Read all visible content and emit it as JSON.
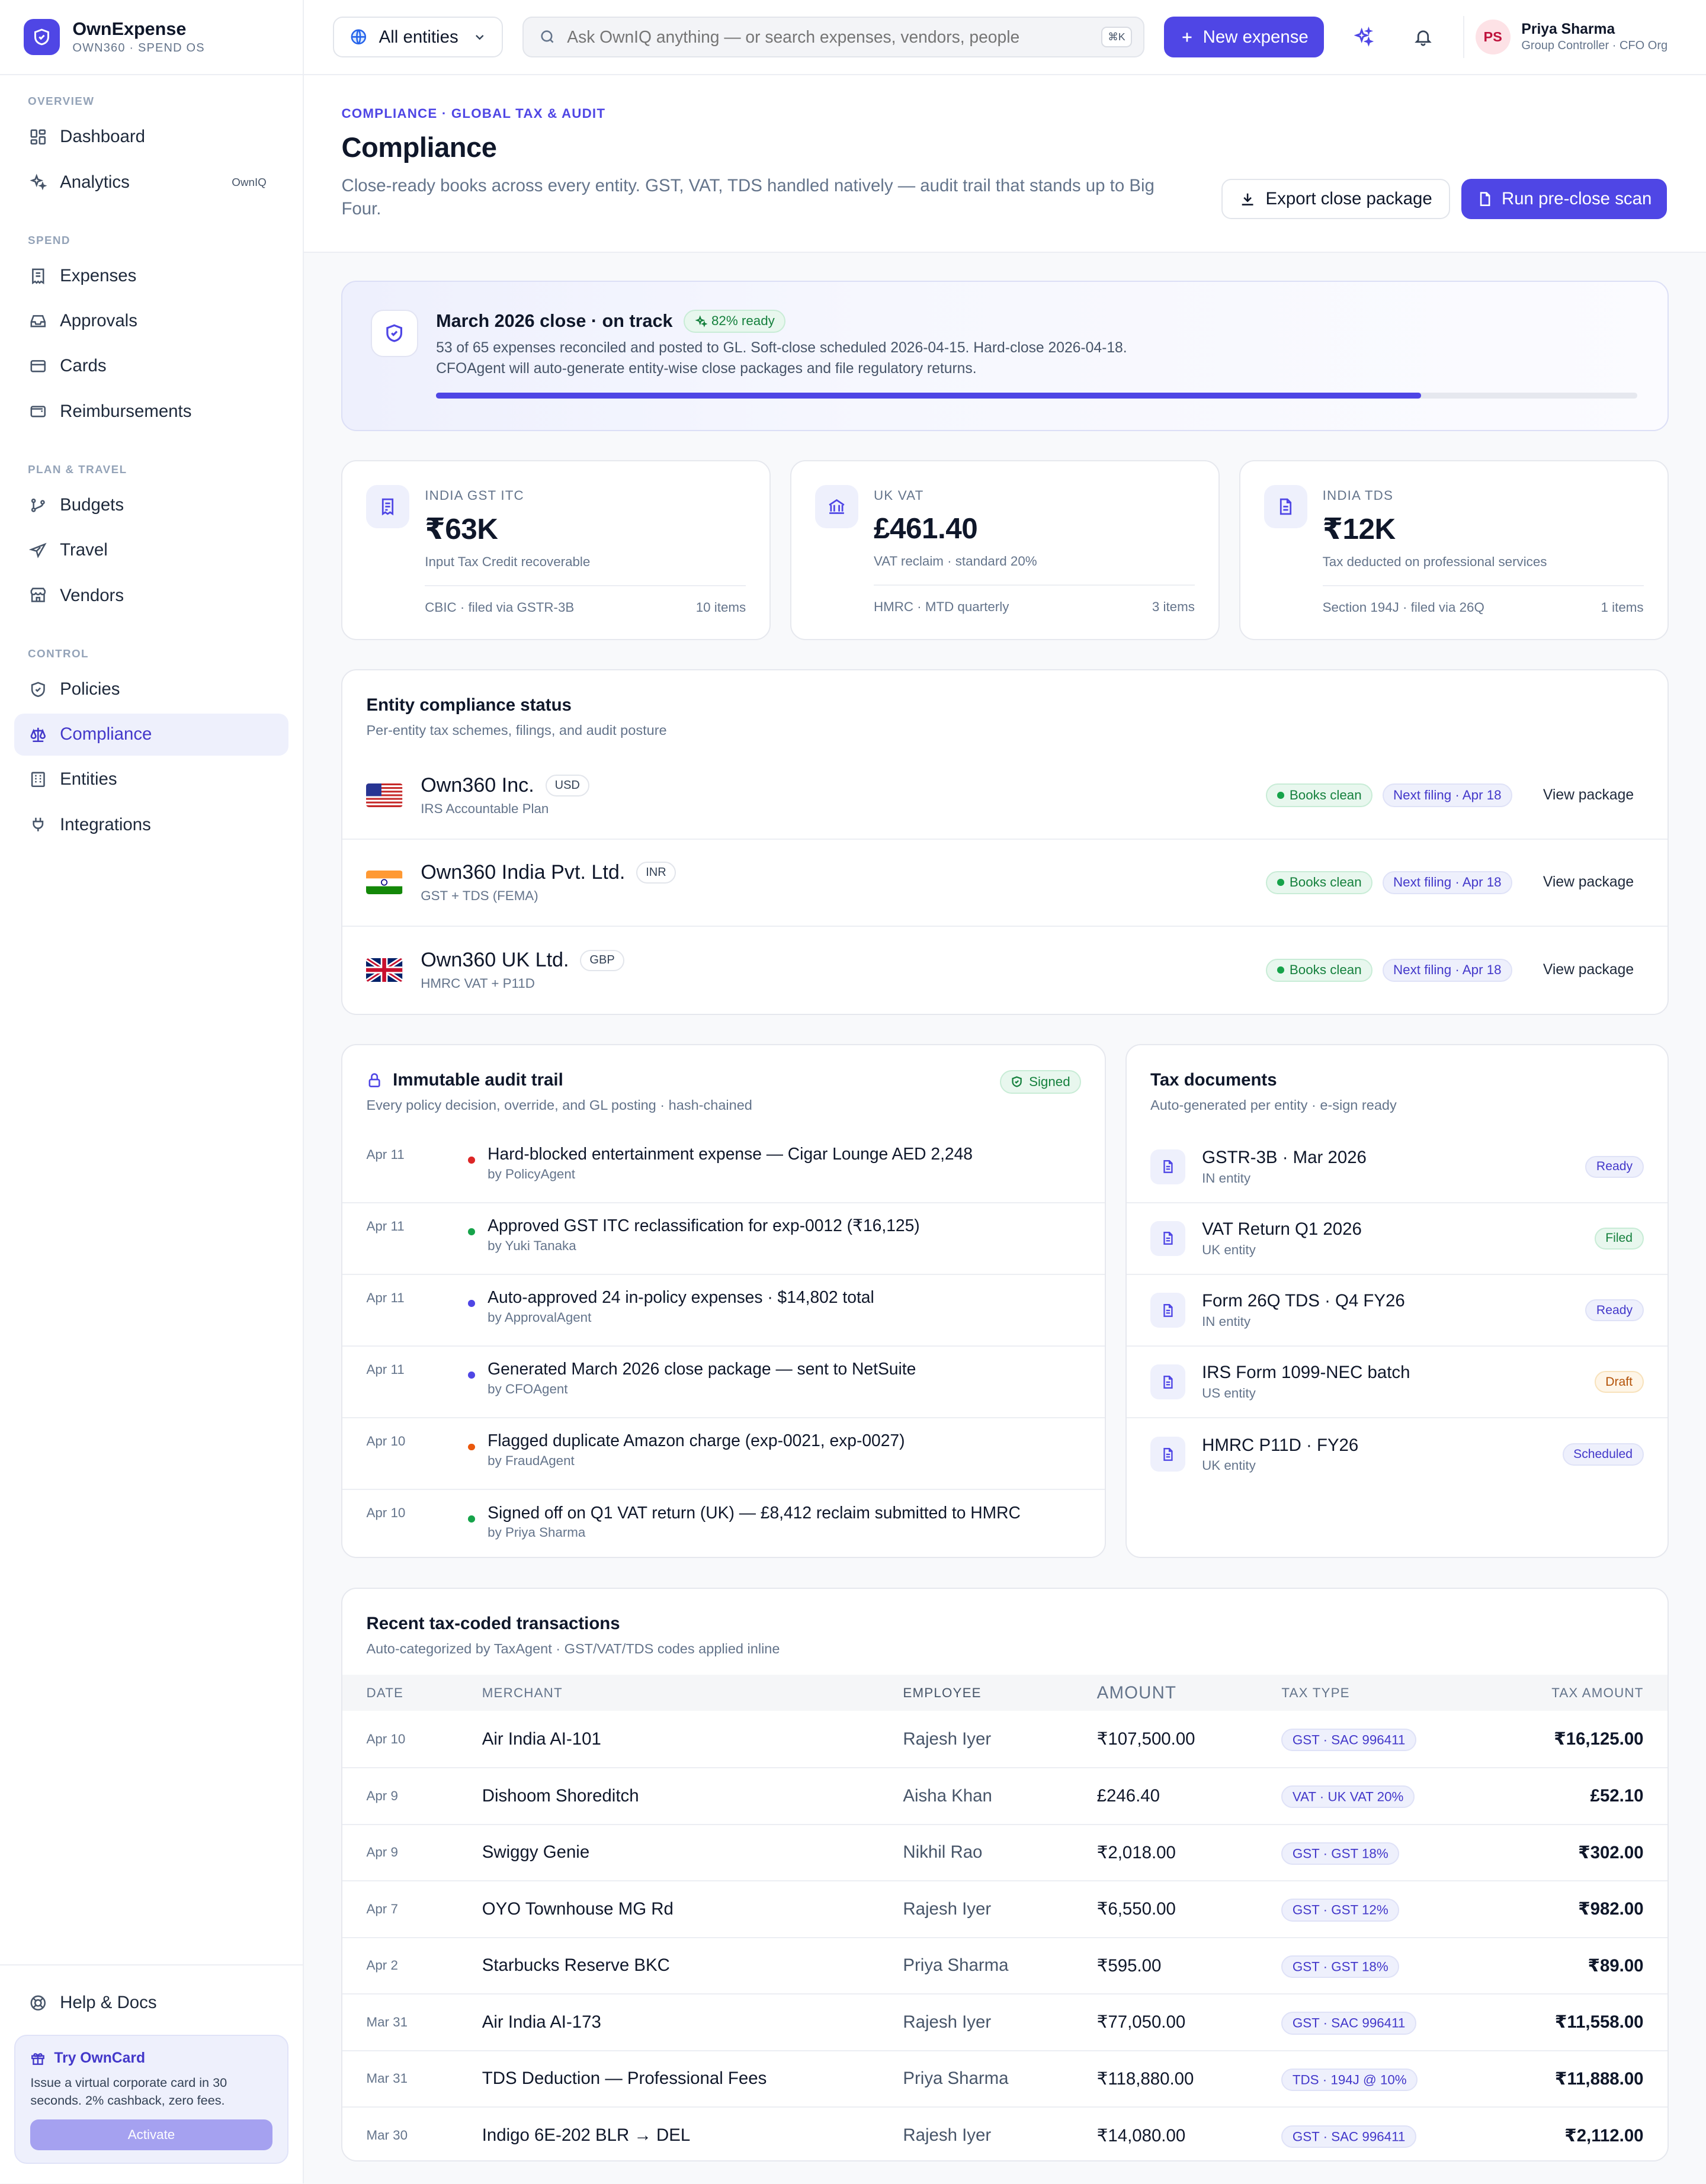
{
  "brand": {
    "name": "OwnExpense",
    "sub": "OWN360 · SPEND OS"
  },
  "nav": {
    "sections": [
      {
        "title": "OVERVIEW",
        "items": [
          {
            "label": "Dashboard"
          },
          {
            "label": "Analytics",
            "badge": "OwnIQ"
          }
        ]
      },
      {
        "title": "SPEND",
        "items": [
          {
            "label": "Expenses"
          },
          {
            "label": "Approvals"
          },
          {
            "label": "Cards"
          },
          {
            "label": "Reimbursements"
          }
        ]
      },
      {
        "title": "PLAN & TRAVEL",
        "items": [
          {
            "label": "Budgets"
          },
          {
            "label": "Travel"
          },
          {
            "label": "Vendors"
          }
        ]
      },
      {
        "title": "CONTROL",
        "items": [
          {
            "label": "Policies"
          },
          {
            "label": "Compliance",
            "active": true
          },
          {
            "label": "Entities"
          },
          {
            "label": "Integrations"
          }
        ]
      }
    ],
    "help": "Help & Docs"
  },
  "promo": {
    "title": "Try OwnCard",
    "text": "Issue a virtual corporate card in 30 seconds. 2% cashback, zero fees.",
    "button": "Activate"
  },
  "topbar": {
    "entity_selector": "All entities",
    "search_placeholder": "Ask OwnIQ anything — or search expenses, vendors, people",
    "search_shortcut": "⌘K",
    "new_expense": "New expense",
    "user": {
      "initials": "PS",
      "name": "Priya Sharma",
      "role": "Group Controller · CFO Org"
    }
  },
  "page": {
    "eyebrow": "COMPLIANCE · GLOBAL TAX & AUDIT",
    "title": "Compliance",
    "description": "Close-ready books across every entity. GST, VAT, TDS handled natively — audit trail that stands up to Big Four.",
    "export_button": "Export close package",
    "scan_button": "Run pre-close scan"
  },
  "close_status": {
    "title": "March 2026 close · on track",
    "ready_pill": "82% ready",
    "line1": "53 of 65 expenses reconciled and posted to GL. Soft-close scheduled 2026-04-15. Hard-close 2026-04-18.",
    "line2": "CFOAgent will auto-generate entity-wise close packages and file regulatory returns.",
    "progress": 0.82
  },
  "stats": [
    {
      "label": "INDIA GST ITC",
      "value": "₹63K",
      "sub": "Input Tax Credit recoverable",
      "foot_left": "CBIC · filed via GSTR-3B",
      "foot_right": "10 items",
      "icon": "receipt-icon"
    },
    {
      "label": "UK VAT",
      "value": "£461.40",
      "sub": "VAT reclaim · standard 20%",
      "foot_left": "HMRC · MTD quarterly",
      "foot_right": "3 items",
      "icon": "bank-icon"
    },
    {
      "label": "INDIA TDS",
      "value": "₹12K",
      "sub": "Tax deducted on professional services",
      "foot_left": "Section 194J · filed via 26Q",
      "foot_right": "1 items",
      "icon": "document-icon"
    }
  ],
  "entities": {
    "title": "Entity compliance status",
    "subtitle": "Per-entity tax schemes, filings, and audit posture",
    "rows": [
      {
        "flag": "us",
        "name": "Own360 Inc.",
        "currency": "USD",
        "scheme": "IRS Accountable Plan",
        "status": "Books clean",
        "filing": "Next filing · Apr 18",
        "action": "View package"
      },
      {
        "flag": "in",
        "name": "Own360 India Pvt. Ltd.",
        "currency": "INR",
        "scheme": "GST + TDS (FEMA)",
        "status": "Books clean",
        "filing": "Next filing · Apr 18",
        "action": "View package"
      },
      {
        "flag": "uk",
        "name": "Own360 UK Ltd.",
        "currency": "GBP",
        "scheme": "HMRC VAT + P11D",
        "status": "Books clean",
        "filing": "Next filing · Apr 18",
        "action": "View package"
      }
    ]
  },
  "audit": {
    "title": "Immutable audit trail",
    "subtitle": "Every policy decision, override, and GL posting · hash-chained",
    "badge": "Signed",
    "rows": [
      {
        "date": "Apr 11",
        "text": "Hard-blocked entertainment expense — Cigar Lounge AED 2,248",
        "by": "by PolicyAgent",
        "color": "#dc2626"
      },
      {
        "date": "Apr 11",
        "text": "Approved GST ITC reclassification for exp-0012 (₹16,125)",
        "by": "by Yuki Tanaka",
        "color": "#16a34a"
      },
      {
        "date": "Apr 11",
        "text": "Auto-approved 24 in-policy expenses · $14,802 total",
        "by": "by ApprovalAgent",
        "color": "#4f46e5"
      },
      {
        "date": "Apr 11",
        "text": "Generated March 2026 close package — sent to NetSuite",
        "by": "by CFOAgent",
        "color": "#4f46e5"
      },
      {
        "date": "Apr 10",
        "text": "Flagged duplicate Amazon charge (exp-0021, exp-0027)",
        "by": "by FraudAgent",
        "color": "#ea580c"
      },
      {
        "date": "Apr 10",
        "text": "Signed off on Q1 VAT return (UK) — £8,412 reclaim submitted to HMRC",
        "by": "by Priya Sharma",
        "color": "#16a34a"
      }
    ]
  },
  "docs": {
    "title": "Tax documents",
    "subtitle": "Auto-generated per entity · e-sign ready",
    "rows": [
      {
        "name": "GSTR-3B · Mar 2026",
        "entity": "IN entity",
        "status": "Ready",
        "kind": "ready"
      },
      {
        "name": "VAT Return Q1 2026",
        "entity": "UK entity",
        "status": "Filed",
        "kind": "filed"
      },
      {
        "name": "Form 26Q TDS · Q4 FY26",
        "entity": "IN entity",
        "status": "Ready",
        "kind": "ready"
      },
      {
        "name": "IRS Form 1099-NEC batch",
        "entity": "US entity",
        "status": "Draft",
        "kind": "draft"
      },
      {
        "name": "HMRC P11D · FY26",
        "entity": "UK entity",
        "status": "Scheduled",
        "kind": "scheduled"
      }
    ]
  },
  "transactions": {
    "title": "Recent tax-coded transactions",
    "subtitle": "Auto-categorized by TaxAgent · GST/VAT/TDS codes applied inline",
    "columns": [
      "DATE",
      "MERCHANT",
      "EMPLOYEE",
      "AMOUNT",
      "TAX TYPE",
      "TAX AMOUNT"
    ],
    "rows": [
      {
        "date": "Apr 10",
        "merchant": "Air India AI-101",
        "employee": "Rajesh Iyer",
        "amount": "₹107,500.00",
        "tax_type": "GST · SAC 996411",
        "tax_amount": "₹16,125.00"
      },
      {
        "date": "Apr 9",
        "merchant": "Dishoom Shoreditch",
        "employee": "Aisha Khan",
        "amount": "£246.40",
        "tax_type": "VAT · UK VAT 20%",
        "tax_amount": "£52.10"
      },
      {
        "date": "Apr 9",
        "merchant": "Swiggy Genie",
        "employee": "Nikhil Rao",
        "amount": "₹2,018.00",
        "tax_type": "GST · GST 18%",
        "tax_amount": "₹302.00"
      },
      {
        "date": "Apr 7",
        "merchant": "OYO Townhouse MG Rd",
        "employee": "Rajesh Iyer",
        "amount": "₹6,550.00",
        "tax_type": "GST · GST 12%",
        "tax_amount": "₹982.00"
      },
      {
        "date": "Apr 2",
        "merchant": "Starbucks Reserve BKC",
        "employee": "Priya Sharma",
        "amount": "₹595.00",
        "tax_type": "GST · GST 18%",
        "tax_amount": "₹89.00"
      },
      {
        "date": "Mar 31",
        "merchant": "Air India AI-173",
        "employee": "Rajesh Iyer",
        "amount": "₹77,050.00",
        "tax_type": "GST · SAC 996411",
        "tax_amount": "₹11,558.00"
      },
      {
        "date": "Mar 31",
        "merchant": "TDS Deduction — Professional Fees",
        "employee": "Priya Sharma",
        "amount": "₹118,880.00",
        "tax_type": "TDS · 194J @ 10%",
        "tax_amount": "₹11,888.00"
      },
      {
        "date": "Mar 30",
        "merchant": "Indigo 6E-202 BLR → DEL",
        "employee": "Rajesh Iyer",
        "amount": "₹14,080.00",
        "tax_type": "GST · SAC 996411",
        "tax_amount": "₹2,112.00"
      }
    ]
  },
  "colors": {
    "accent": "#4f46e5",
    "success": "#15803d",
    "warning": "#b45309"
  }
}
